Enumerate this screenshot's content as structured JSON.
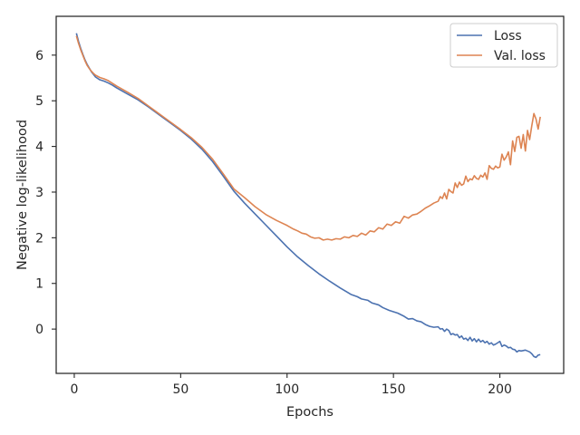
{
  "chart_data": {
    "type": "line",
    "title": "",
    "xlabel": "Epochs",
    "ylabel": "Negative log-likelihood",
    "xlim": [
      -8.5,
      230
    ],
    "ylim": [
      -0.97,
      6.85
    ],
    "xticks": [
      0,
      50,
      100,
      150,
      200
    ],
    "yticks": [
      0,
      1,
      2,
      3,
      4,
      5,
      6
    ],
    "grid": false,
    "legend": "top-right",
    "series": [
      {
        "name": "Loss",
        "color": "#4c72b0",
        "points": [
          [
            1,
            6.48
          ],
          [
            2,
            6.3
          ],
          [
            3,
            6.15
          ],
          [
            4,
            6.02
          ],
          [
            5,
            5.9
          ],
          [
            6,
            5.8
          ],
          [
            7,
            5.72
          ],
          [
            8,
            5.64
          ],
          [
            9,
            5.58
          ],
          [
            10,
            5.52
          ],
          [
            12,
            5.46
          ],
          [
            14,
            5.43
          ],
          [
            16,
            5.39
          ],
          [
            18,
            5.34
          ],
          [
            20,
            5.28
          ],
          [
            25,
            5.15
          ],
          [
            30,
            5.02
          ],
          [
            35,
            4.86
          ],
          [
            40,
            4.69
          ],
          [
            45,
            4.52
          ],
          [
            50,
            4.35
          ],
          [
            55,
            4.16
          ],
          [
            60,
            3.94
          ],
          [
            65,
            3.67
          ],
          [
            70,
            3.35
          ],
          [
            75,
            3.02
          ],
          [
            80,
            2.76
          ],
          [
            85,
            2.52
          ],
          [
            90,
            2.28
          ],
          [
            95,
            2.04
          ],
          [
            100,
            1.8
          ],
          [
            105,
            1.58
          ],
          [
            110,
            1.39
          ],
          [
            115,
            1.21
          ],
          [
            120,
            1.05
          ],
          [
            125,
            0.9
          ],
          [
            130,
            0.76
          ],
          [
            133,
            0.71
          ],
          [
            135,
            0.66
          ],
          [
            138,
            0.63
          ],
          [
            140,
            0.57
          ],
          [
            143,
            0.53
          ],
          [
            145,
            0.47
          ],
          [
            148,
            0.41
          ],
          [
            150,
            0.38
          ],
          [
            152,
            0.35
          ],
          [
            155,
            0.28
          ],
          [
            157,
            0.22
          ],
          [
            159,
            0.23
          ],
          [
            161,
            0.18
          ],
          [
            163,
            0.16
          ],
          [
            165,
            0.1
          ],
          [
            167,
            0.06
          ],
          [
            169,
            0.04
          ],
          [
            171,
            0.05
          ],
          [
            172,
            0.0
          ],
          [
            173,
            0.01
          ],
          [
            174,
            -0.05
          ],
          [
            175,
            0.0
          ],
          [
            176,
            -0.03
          ],
          [
            177,
            -0.12
          ],
          [
            178,
            -0.1
          ],
          [
            179,
            -0.13
          ],
          [
            180,
            -0.12
          ],
          [
            181,
            -0.19
          ],
          [
            182,
            -0.15
          ],
          [
            183,
            -0.22
          ],
          [
            184,
            -0.2
          ],
          [
            185,
            -0.25
          ],
          [
            186,
            -0.18
          ],
          [
            187,
            -0.26
          ],
          [
            188,
            -0.21
          ],
          [
            189,
            -0.28
          ],
          [
            190,
            -0.22
          ],
          [
            191,
            -0.28
          ],
          [
            192,
            -0.25
          ],
          [
            193,
            -0.3
          ],
          [
            194,
            -0.27
          ],
          [
            195,
            -0.33
          ],
          [
            196,
            -0.3
          ],
          [
            197,
            -0.35
          ],
          [
            198,
            -0.33
          ],
          [
            199,
            -0.3
          ],
          [
            200,
            -0.27
          ],
          [
            201,
            -0.38
          ],
          [
            202,
            -0.35
          ],
          [
            203,
            -0.37
          ],
          [
            204,
            -0.41
          ],
          [
            205,
            -0.4
          ],
          [
            206,
            -0.44
          ],
          [
            207,
            -0.45
          ],
          [
            208,
            -0.5
          ],
          [
            209,
            -0.47
          ],
          [
            210,
            -0.48
          ],
          [
            212,
            -0.46
          ],
          [
            213,
            -0.48
          ],
          [
            214,
            -0.5
          ],
          [
            215,
            -0.54
          ],
          [
            216,
            -0.6
          ],
          [
            217,
            -0.62
          ],
          [
            218,
            -0.57
          ],
          [
            219,
            -0.56
          ]
        ]
      },
      {
        "name": "Val. loss",
        "color": "#dd8452",
        "points": [
          [
            1,
            6.42
          ],
          [
            2,
            6.26
          ],
          [
            3,
            6.12
          ],
          [
            4,
            6.0
          ],
          [
            5,
            5.88
          ],
          [
            6,
            5.78
          ],
          [
            7,
            5.71
          ],
          [
            8,
            5.65
          ],
          [
            9,
            5.6
          ],
          [
            10,
            5.56
          ],
          [
            12,
            5.51
          ],
          [
            14,
            5.48
          ],
          [
            16,
            5.44
          ],
          [
            18,
            5.38
          ],
          [
            20,
            5.32
          ],
          [
            25,
            5.19
          ],
          [
            30,
            5.05
          ],
          [
            35,
            4.88
          ],
          [
            40,
            4.71
          ],
          [
            45,
            4.54
          ],
          [
            50,
            4.37
          ],
          [
            55,
            4.19
          ],
          [
            60,
            3.98
          ],
          [
            65,
            3.72
          ],
          [
            70,
            3.4
          ],
          [
            75,
            3.07
          ],
          [
            80,
            2.88
          ],
          [
            85,
            2.68
          ],
          [
            90,
            2.51
          ],
          [
            95,
            2.38
          ],
          [
            100,
            2.27
          ],
          [
            103,
            2.19
          ],
          [
            105,
            2.15
          ],
          [
            107,
            2.1
          ],
          [
            109,
            2.08
          ],
          [
            111,
            2.02
          ],
          [
            113,
            1.99
          ],
          [
            115,
            2.0
          ],
          [
            117,
            1.95
          ],
          [
            119,
            1.97
          ],
          [
            121,
            1.95
          ],
          [
            123,
            1.98
          ],
          [
            125,
            1.97
          ],
          [
            127,
            2.02
          ],
          [
            129,
            2.0
          ],
          [
            131,
            2.05
          ],
          [
            133,
            2.03
          ],
          [
            135,
            2.1
          ],
          [
            137,
            2.06
          ],
          [
            139,
            2.15
          ],
          [
            141,
            2.13
          ],
          [
            143,
            2.22
          ],
          [
            145,
            2.19
          ],
          [
            147,
            2.3
          ],
          [
            149,
            2.27
          ],
          [
            151,
            2.35
          ],
          [
            153,
            2.32
          ],
          [
            155,
            2.47
          ],
          [
            157,
            2.43
          ],
          [
            159,
            2.5
          ],
          [
            161,
            2.52
          ],
          [
            163,
            2.58
          ],
          [
            165,
            2.65
          ],
          [
            167,
            2.7
          ],
          [
            169,
            2.76
          ],
          [
            171,
            2.8
          ],
          [
            172,
            2.9
          ],
          [
            173,
            2.86
          ],
          [
            174,
            2.98
          ],
          [
            175,
            2.85
          ],
          [
            176,
            3.06
          ],
          [
            177,
            3.01
          ],
          [
            178,
            2.98
          ],
          [
            179,
            3.2
          ],
          [
            180,
            3.1
          ],
          [
            181,
            3.22
          ],
          [
            182,
            3.15
          ],
          [
            183,
            3.18
          ],
          [
            184,
            3.35
          ],
          [
            185,
            3.23
          ],
          [
            186,
            3.29
          ],
          [
            187,
            3.27
          ],
          [
            188,
            3.36
          ],
          [
            189,
            3.3
          ],
          [
            190,
            3.28
          ],
          [
            191,
            3.37
          ],
          [
            192,
            3.33
          ],
          [
            193,
            3.42
          ],
          [
            194,
            3.28
          ],
          [
            195,
            3.58
          ],
          [
            196,
            3.52
          ],
          [
            197,
            3.5
          ],
          [
            198,
            3.57
          ],
          [
            199,
            3.53
          ],
          [
            200,
            3.55
          ],
          [
            201,
            3.83
          ],
          [
            202,
            3.7
          ],
          [
            203,
            3.77
          ],
          [
            204,
            3.88
          ],
          [
            205,
            3.6
          ],
          [
            206,
            4.12
          ],
          [
            207,
            3.89
          ],
          [
            208,
            4.2
          ],
          [
            209,
            4.22
          ],
          [
            210,
            3.96
          ],
          [
            211,
            4.26
          ],
          [
            212,
            3.9
          ],
          [
            213,
            4.35
          ],
          [
            214,
            4.15
          ],
          [
            215,
            4.45
          ],
          [
            216,
            4.72
          ],
          [
            217,
            4.6
          ],
          [
            218,
            4.38
          ],
          [
            219,
            4.65
          ]
        ]
      }
    ]
  }
}
